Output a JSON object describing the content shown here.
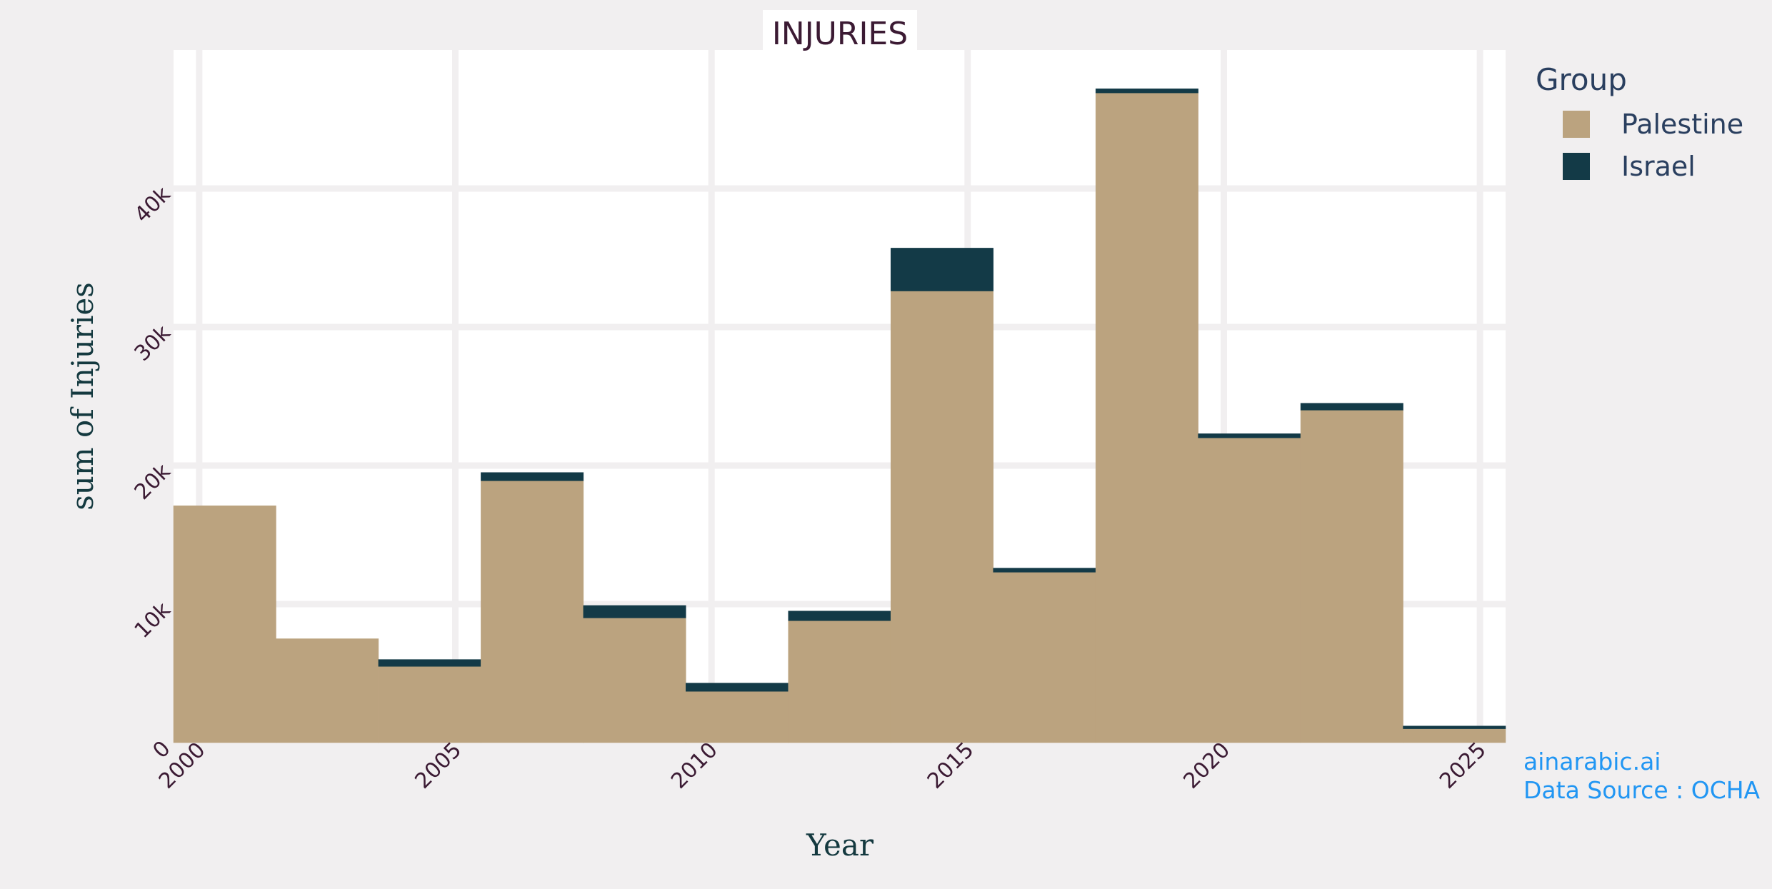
{
  "chart_data": {
    "type": "bar",
    "title": "INJURIES",
    "xlabel": "Year",
    "ylabel": "sum of Injuries",
    "barmode": "stacked histogram",
    "bins": [
      {
        "start": 1999.5,
        "end": 2001.5
      },
      {
        "start": 2001.5,
        "end": 2003.5
      },
      {
        "start": 2003.5,
        "end": 2005.5
      },
      {
        "start": 2005.5,
        "end": 2007.5
      },
      {
        "start": 2007.5,
        "end": 2009.5
      },
      {
        "start": 2009.5,
        "end": 2011.5
      },
      {
        "start": 2011.5,
        "end": 2013.5
      },
      {
        "start": 2013.5,
        "end": 2015.5
      },
      {
        "start": 2015.5,
        "end": 2017.5
      },
      {
        "start": 2017.5,
        "end": 2019.5
      },
      {
        "start": 2019.5,
        "end": 2021.5
      },
      {
        "start": 2021.5,
        "end": 2023.5
      },
      {
        "start": 2023.5,
        "end": 2025.5
      }
    ],
    "series": [
      {
        "name": "Palestine",
        "color": "#bba37f",
        "values": [
          17100,
          7500,
          5500,
          18900,
          9000,
          3700,
          8800,
          32600,
          12300,
          46900,
          22000,
          24000,
          1000
        ]
      },
      {
        "name": "Israel",
        "color": "#133a47",
        "values": [
          0,
          0,
          500,
          600,
          900,
          600,
          700,
          3100,
          300,
          300,
          300,
          500,
          200
        ]
      }
    ],
    "xlim": [
      1999.5,
      2025.5
    ],
    "ylim": [
      0,
      50000
    ],
    "x_ticks": [
      2000,
      2005,
      2010,
      2015,
      2020,
      2025
    ],
    "x_tick_labels": [
      "2000",
      "2005",
      "2010",
      "2015",
      "2020",
      "2025"
    ],
    "y_ticks": [
      0,
      10000,
      20000,
      30000,
      40000
    ],
    "y_tick_labels": [
      "0",
      "10k",
      "20k",
      "30k",
      "40k"
    ],
    "legend_title": "Group",
    "legend_position": "top-right, outside plot",
    "grid": true,
    "annotations": [
      "ainarabic.ai",
      "Data Source : OCHA"
    ]
  }
}
